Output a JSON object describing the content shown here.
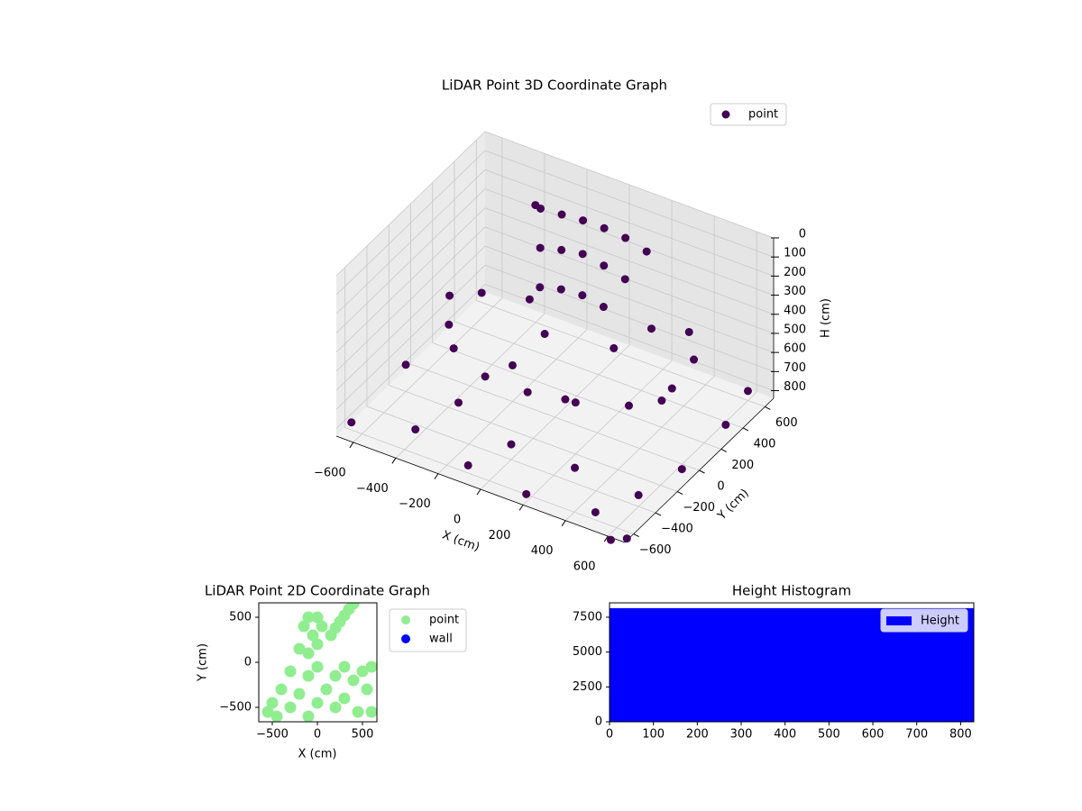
{
  "chart_data": [
    {
      "type": "scatter3d",
      "title": "LiDAR Point 3D Coordinate Graph",
      "xlabel": "X (cm)",
      "ylabel": "Y (cm)",
      "zlabel": "H (cm)",
      "xlim": [
        -680,
        680
      ],
      "ylim": [
        -680,
        680
      ],
      "zlim": [
        840,
        0
      ],
      "xticks": [
        {
          "value": -600,
          "label": "−600"
        },
        {
          "value": -400,
          "label": "−400"
        },
        {
          "value": -200,
          "label": "−200"
        },
        0,
        200,
        400,
        600
      ],
      "yticks": [
        {
          "value": -600,
          "label": "−600"
        },
        {
          "value": -400,
          "label": "−400"
        },
        {
          "value": -200,
          "label": "−200"
        },
        0,
        200,
        400,
        600
      ],
      "zticks": [
        0,
        100,
        200,
        300,
        400,
        500,
        600,
        700,
        800
      ],
      "grid": true,
      "legend": "upper right",
      "series": [
        {
          "name": "point",
          "color": "#440154",
          "x": [
            -300,
            -200,
            -100,
            0,
            100,
            -250,
            -150,
            -50,
            50,
            150,
            -200,
            -100,
            0,
            100,
            -350,
            200,
            -600,
            -500,
            -400,
            -200,
            0,
            200,
            400,
            500,
            500,
            400,
            -300,
            -500,
            -100,
            200,
            300,
            -650,
            -400,
            -100,
            200,
            500,
            600,
            650,
            650,
            -600,
            -300,
            0,
            300,
            100,
            -200,
            400,
            600,
            700,
            650
          ],
          "y": [
            450,
            450,
            450,
            450,
            450,
            350,
            350,
            350,
            350,
            350,
            250,
            250,
            250,
            250,
            500,
            450,
            200,
            0,
            -150,
            -250,
            -250,
            -200,
            -100,
            100,
            300,
            450,
            350,
            300,
            100,
            150,
            300,
            -600,
            -500,
            -600,
            -650,
            -600,
            -400,
            -100,
            300,
            -200,
            -300,
            -400,
            -400,
            -100,
            0,
            200,
            600,
            -700,
            -750
          ],
          "z": [
            120,
            110,
            100,
            100,
            110,
            250,
            220,
            200,
            220,
            250,
            380,
            350,
            340,
            360,
            150,
            140,
            560,
            560,
            560,
            570,
            570,
            570,
            560,
            540,
            500,
            480,
            540,
            560,
            500,
            480,
            420,
            800,
            790,
            800,
            800,
            800,
            780,
            790,
            780,
            700,
            720,
            760,
            760,
            650,
            650,
            700,
            790,
            800,
            800
          ]
        }
      ]
    },
    {
      "type": "scatter",
      "title": "LiDAR Point 2D Coordinate Graph",
      "xlabel": "X (cm)",
      "ylabel": "Y (cm)",
      "xlim": [
        -650,
        660
      ],
      "ylim": [
        -660,
        660
      ],
      "xticks": [
        {
          "value": -500,
          "label": "−500"
        },
        0,
        500
      ],
      "yticks": [
        {
          "value": -500,
          "label": "−500"
        },
        0,
        500
      ],
      "legend": "outside right",
      "series": [
        {
          "name": "point",
          "color": "#90ee90",
          "x": [
            150,
            200,
            250,
            300,
            350,
            400,
            -100,
            0,
            -150,
            50,
            -50,
            -200,
            0,
            -100,
            -500,
            -400,
            -300,
            -200,
            -100,
            0,
            100,
            200,
            300,
            400,
            500,
            600,
            550,
            450,
            200,
            -100,
            -300,
            -450,
            0,
            300,
            600,
            -550
          ],
          "y": [
            300,
            380,
            450,
            520,
            590,
            650,
            500,
            500,
            400,
            400,
            300,
            150,
            200,
            100,
            -450,
            -300,
            -500,
            -350,
            -600,
            -450,
            -300,
            -500,
            -400,
            -200,
            -100,
            -50,
            -300,
            -550,
            -150,
            -150,
            -100,
            -600,
            -50,
            -50,
            -550,
            -550
          ]
        },
        {
          "name": "wall",
          "color": "#0000ff",
          "x": [],
          "y": []
        }
      ]
    },
    {
      "type": "hist",
      "title": "Height Histogram",
      "xlim": [
        0,
        830
      ],
      "ylim": [
        0,
        8530
      ],
      "xticks": [
        0,
        100,
        200,
        300,
        400,
        500,
        600,
        700,
        800
      ],
      "yticks": [
        0,
        2500,
        5000,
        7500
      ],
      "legend": "upper right",
      "series": [
        {
          "name": "Height",
          "color": "#0000ff",
          "bins": [
            0,
            830
          ],
          "counts": [
            8150
          ]
        }
      ]
    }
  ]
}
